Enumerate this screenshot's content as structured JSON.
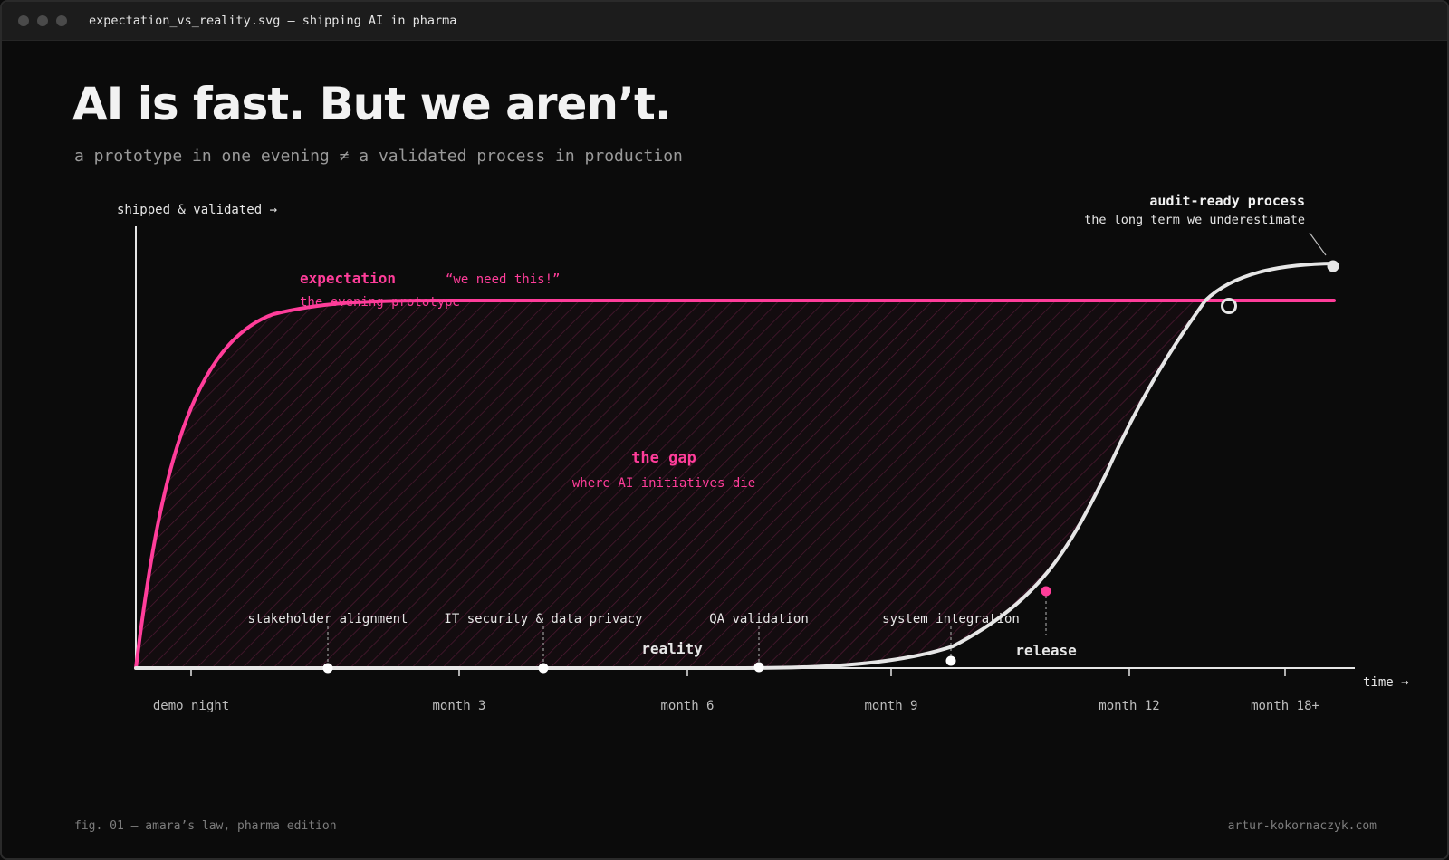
{
  "window": {
    "title": "expectation_vs_reality.svg — shipping AI in pharma",
    "controls": [
      "close-dot-icon",
      "minimize-dot-icon",
      "zoom-dot-icon"
    ]
  },
  "headline": "AI is fast. But we aren’t.",
  "subhead": "a prototype in one evening ≠ a validated process in production",
  "chart_data": {
    "type": "line",
    "y_axis_label": "shipped & validated →",
    "x_axis_label": "time →",
    "x_ticks": [
      {
        "label": "demo night",
        "t": 0
      },
      {
        "label": "month 3",
        "t": 3
      },
      {
        "label": "month 6",
        "t": 6
      },
      {
        "label": "month 9",
        "t": 9
      },
      {
        "label": "month 12",
        "t": 12
      },
      {
        "label": "month 18+",
        "t": 18
      }
    ],
    "series": [
      {
        "key": "expectation",
        "color": "#ff3d9a",
        "shape": "fast rise then plateau"
      },
      {
        "key": "reality",
        "color": "#e6e6e6",
        "shape": "flat then S-curve rising above expectation"
      }
    ],
    "annotations": {
      "expectation_title": "expectation",
      "expectation_sub": "the evening prototype",
      "quote": "“we need this!”",
      "gap_title": "the gap",
      "gap_sub": "where AI initiatives die",
      "reality_label": "reality",
      "release_label": "release",
      "audit_title": "audit-ready process",
      "audit_sub": "the long term we underestimate"
    },
    "milestones": [
      {
        "label": "stakeholder alignment"
      },
      {
        "label": "IT security & data privacy"
      },
      {
        "label": "QA validation"
      },
      {
        "label": "system integration"
      }
    ],
    "colors": {
      "accent": "#ff3d9a",
      "reality": "#e6e6e6",
      "background": "#0b0b0b"
    }
  },
  "footer": {
    "left": "fig. 01 — amara’s law, pharma edition",
    "right": "artur-kokornaczyk.com"
  }
}
